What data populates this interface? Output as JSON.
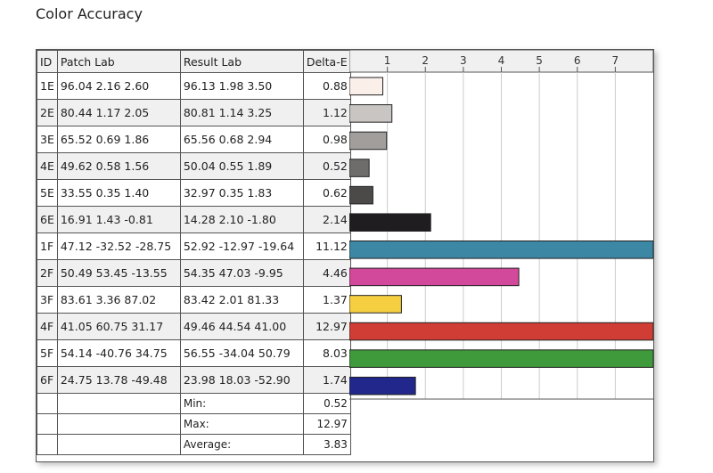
{
  "title": "Color Accuracy",
  "headers": {
    "id": "ID",
    "patch": "Patch Lab",
    "result": "Result Lab",
    "delta": "Delta-E"
  },
  "summary": [
    {
      "label": "Min:",
      "value": "0.52"
    },
    {
      "label": "Max:",
      "value": "12.97"
    },
    {
      "label": "Average:",
      "value": "3.83"
    }
  ],
  "chart_data": {
    "type": "bar",
    "orientation": "horizontal",
    "xlim": [
      0,
      8
    ],
    "xticks": [
      1,
      2,
      3,
      4,
      5,
      6,
      7
    ],
    "grid": true,
    "categories": [
      "1E",
      "2E",
      "3E",
      "4E",
      "5E",
      "6E",
      "1F",
      "2F",
      "3F",
      "4F",
      "5F",
      "6F"
    ],
    "patch_lab": [
      "96.04  2.16  2.60",
      "80.44  1.17  2.05",
      "65.52  0.69  1.86",
      "49.62  0.58  1.56",
      "33.55  0.35  1.40",
      "16.91  1.43 -0.81",
      "47.12 -32.52 -28.75",
      "50.49  53.45 -13.55",
      "83.61  3.36  87.02",
      "41.05  60.75  31.17",
      "54.14 -40.76  34.75",
      "24.75  13.78 -49.48"
    ],
    "result_lab": [
      "96.13  1.98  3.50",
      "80.81  1.14  3.25",
      "65.56  0.68  2.94",
      "50.04  0.55  1.89",
      "32.97  0.35  1.83",
      "14.28  2.10 -1.80",
      "52.92 -12.97 -19.64",
      "54.35  47.03 -9.95",
      "83.42  2.01  81.33",
      "49.46  44.54  41.00",
      "56.55 -34.04  50.79",
      "23.98  18.03 -52.90"
    ],
    "values": [
      0.88,
      1.12,
      0.98,
      0.52,
      0.62,
      2.14,
      11.12,
      4.46,
      1.37,
      12.97,
      8.03,
      1.74
    ],
    "value_labels": [
      "0.88",
      "1.12",
      "0.98",
      "0.52",
      "0.62",
      "2.14",
      "11.12",
      "4.46",
      "1.37",
      "12.97",
      "8.03",
      "1.74"
    ],
    "colors": [
      "#fbefea",
      "#c9c5c2",
      "#a19e9b",
      "#6f6d6b",
      "#4c4a49",
      "#1f1d1f",
      "#3b87a4",
      "#d2499b",
      "#f5cf3f",
      "#d03d34",
      "#3e9a3a",
      "#22278c"
    ]
  }
}
